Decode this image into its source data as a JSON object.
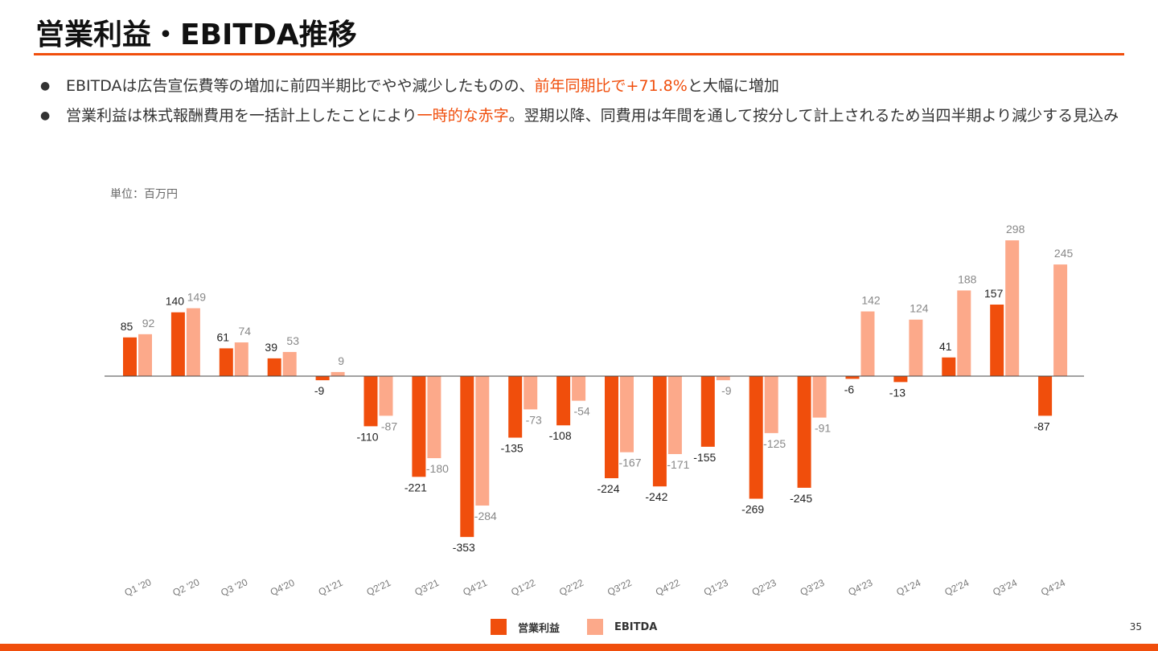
{
  "title": "営業利益・EBITDA推移",
  "bullets": [
    {
      "pre": "EBITDAは広告宣伝費等の増加に前四半期比でやや減少したものの、",
      "hl": "前年同期比で+71.8%",
      "post": "と大幅に増加"
    },
    {
      "pre": "営業利益は株式報酬費用を一括計上したことにより",
      "hl": "一時的な赤字",
      "post": "。翌期以降、同費用は年間を通して按分して計上されるため当四半期より減少する見込み"
    }
  ],
  "page_number": "35",
  "colors": {
    "accent": "#f04e0c",
    "op": "#f04e0c",
    "ebitda": "#fca98a"
  },
  "chart_data": {
    "type": "bar",
    "unit_label": "単位：百万円",
    "categories": [
      "Q1 '20",
      "Q2 '20",
      "Q3 '20",
      "Q4'20",
      "Q1'21",
      "Q2'21",
      "Q3'21",
      "Q4'21",
      "Q1'22",
      "Q2'22",
      "Q3'22",
      "Q4'22",
      "Q1'23",
      "Q2'23",
      "Q3'23",
      "Q4'23",
      "Q1'24",
      "Q2'24",
      "Q3'24",
      "Q4'24"
    ],
    "series": [
      {
        "name": "営業利益",
        "values": [
          85,
          140,
          61,
          39,
          -9,
          -110,
          -221,
          -353,
          -135,
          -108,
          -224,
          -242,
          -155,
          -269,
          -245,
          -6,
          -13,
          41,
          157,
          -87
        ]
      },
      {
        "name": "EBITDA",
        "values": [
          92,
          149,
          74,
          53,
          9,
          -87,
          -180,
          -284,
          -73,
          -54,
          -167,
          -171,
          -9,
          -125,
          -91,
          142,
          124,
          188,
          298,
          245
        ]
      }
    ],
    "legend": "bottom"
  }
}
